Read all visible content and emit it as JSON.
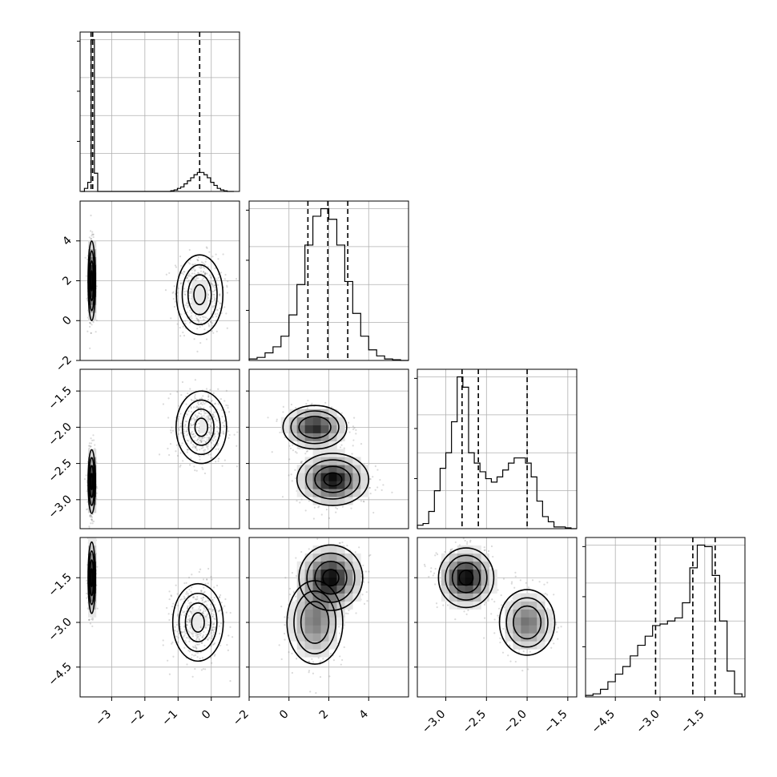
{
  "chart_data": [
    {
      "type": "histogram",
      "parameter_index": 0,
      "bins": [
        -3.92,
        -3.82,
        -3.72,
        -3.62,
        -3.52,
        -3.42,
        -3.32,
        -3.22,
        -3.12,
        -3.02,
        -2.92,
        -2.82,
        -2.72,
        -2.62,
        -2.52,
        -2.42,
        -2.32,
        -2.22,
        -2.12,
        -2.02,
        -1.92,
        -1.82,
        -1.72,
        -1.62,
        -1.52,
        -1.42,
        -1.32,
        -1.22,
        -1.12,
        -1.02,
        -0.92,
        -0.82,
        -0.72,
        -0.62,
        -0.52,
        -0.42,
        -0.32,
        -0.22,
        -0.12,
        -0.02,
        0.08,
        0.18,
        0.28,
        0.38,
        0.48,
        0.58,
        0.68
      ],
      "counts": [
        0,
        0.02,
        0.06,
        1.0,
        0.12,
        0,
        0,
        0,
        0,
        0,
        0,
        0,
        0,
        0,
        0,
        0,
        0,
        0,
        0,
        0,
        0,
        0,
        0,
        0,
        0,
        0,
        0,
        0.005,
        0.01,
        0.02,
        0.03,
        0.05,
        0.07,
        0.09,
        0.11,
        0.125,
        0.125,
        0.11,
        0.09,
        0.06,
        0.04,
        0.02,
        0.01,
        0.004,
        0,
        0
      ],
      "quantiles": [
        -3.62,
        -3.57,
        -0.35
      ],
      "xlim": [
        -3.95,
        0.85
      ]
    },
    {
      "type": "histogram",
      "parameter_index": 1,
      "bins": [
        -2.0,
        -1.6,
        -1.2,
        -0.8,
        -0.4,
        0.0,
        0.4,
        0.8,
        1.2,
        1.6,
        2.0,
        2.4,
        2.8,
        3.2,
        3.6,
        4.0,
        4.4,
        4.8,
        5.2,
        5.6,
        6.0
      ],
      "counts": [
        0.01,
        0.02,
        0.05,
        0.09,
        0.16,
        0.3,
        0.5,
        0.76,
        0.95,
        1.0,
        0.93,
        0.76,
        0.52,
        0.31,
        0.16,
        0.07,
        0.03,
        0.01,
        0.005,
        0
      ],
      "quantiles": [
        0.95,
        1.95,
        2.95
      ],
      "xlim": [
        -2.0,
        6.0
      ]
    },
    {
      "type": "histogram",
      "parameter_index": 2,
      "bins": [
        -3.35,
        -3.28,
        -3.21,
        -3.14,
        -3.07,
        -3.0,
        -2.93,
        -2.86,
        -2.79,
        -2.72,
        -2.65,
        -2.58,
        -2.51,
        -2.44,
        -2.37,
        -2.3,
        -2.23,
        -2.16,
        -2.09,
        -2.02,
        -1.95,
        -1.88,
        -1.81,
        -1.74,
        -1.67,
        -1.6,
        -1.53,
        -1.46,
        -1.39
      ],
      "counts": [
        0.02,
        0.03,
        0.1,
        0.22,
        0.35,
        0.44,
        0.62,
        0.88,
        0.82,
        0.44,
        0.38,
        0.33,
        0.29,
        0.27,
        0.3,
        0.34,
        0.38,
        0.41,
        0.41,
        0.38,
        0.3,
        0.16,
        0.07,
        0.04,
        0.01,
        0.01,
        0.005,
        0
      ],
      "quantiles": [
        -2.8,
        -2.6,
        -2.0
      ],
      "xlim": [
        -3.35,
        -1.39
      ]
    },
    {
      "type": "histogram",
      "parameter_index": 3,
      "bins": [
        -5.5,
        -5.25,
        -5.0,
        -4.75,
        -4.5,
        -4.25,
        -4.0,
        -3.75,
        -3.5,
        -3.25,
        -3.0,
        -2.75,
        -2.5,
        -2.25,
        -2.0,
        -1.75,
        -1.5,
        -1.25,
        -1.0,
        -0.75,
        -0.5,
        -0.25
      ],
      "counts": [
        0.01,
        0.02,
        0.05,
        0.1,
        0.15,
        0.2,
        0.27,
        0.34,
        0.4,
        0.47,
        0.48,
        0.5,
        0.52,
        0.62,
        0.85,
        1.0,
        0.99,
        0.8,
        0.5,
        0.17,
        0.02
      ],
      "quantiles": [
        -3.15,
        -1.9,
        -1.15
      ],
      "xlim": [
        -5.5,
        -0.15
      ]
    },
    {
      "type": "scatter_density",
      "x_parameter": 0,
      "y_parameter": 1,
      "modes": [
        {
          "cx": -3.6,
          "cy": 2.0,
          "sx": 0.055,
          "sy": 1.0,
          "weight": 0.5
        },
        {
          "cx": -0.35,
          "cy": 1.3,
          "sx": 0.35,
          "sy": 1.0,
          "weight": 0.5
        }
      ],
      "xlim": [
        -3.95,
        0.85
      ],
      "ylim": [
        -2.0,
        6.0
      ]
    },
    {
      "type": "scatter_density",
      "x_parameter": 0,
      "y_parameter": 2,
      "modes": [
        {
          "cx": -3.6,
          "cy": -2.75,
          "sx": 0.055,
          "sy": 0.22,
          "weight": 0.5
        },
        {
          "cx": -0.3,
          "cy": -2.0,
          "sx": 0.38,
          "sy": 0.25,
          "weight": 0.5
        }
      ],
      "xlim": [
        -3.95,
        0.85
      ],
      "ylim": [
        -3.4,
        -1.2
      ]
    },
    {
      "type": "scatter_density",
      "x_parameter": 0,
      "y_parameter": 3,
      "modes": [
        {
          "cx": -3.6,
          "cy": -1.5,
          "sx": 0.055,
          "sy": 0.6,
          "weight": 0.5
        },
        {
          "cx": -0.4,
          "cy": -3.0,
          "sx": 0.38,
          "sy": 0.65,
          "weight": 0.5
        }
      ],
      "xlim": [
        -3.95,
        0.85
      ],
      "ylim": [
        -5.5,
        -0.15
      ]
    },
    {
      "type": "scatter_density",
      "x_parameter": 1,
      "y_parameter": 2,
      "modes": [
        {
          "cx": 2.2,
          "cy": -2.72,
          "sx": 0.9,
          "sy": 0.18,
          "weight": 0.6
        },
        {
          "cx": 1.3,
          "cy": -2.0,
          "sx": 0.8,
          "sy": 0.15,
          "weight": 0.4
        }
      ],
      "xlim": [
        -2.0,
        6.0
      ],
      "ylim": [
        -3.4,
        -1.2
      ]
    },
    {
      "type": "scatter_density",
      "x_parameter": 1,
      "y_parameter": 3,
      "modes": [
        {
          "cx": 2.1,
          "cy": -1.5,
          "sx": 0.8,
          "sy": 0.55,
          "weight": 0.6
        },
        {
          "cx": 1.3,
          "cy": -3.0,
          "sx": 0.7,
          "sy": 0.7,
          "weight": 0.4
        }
      ],
      "xlim": [
        -2.0,
        6.0
      ],
      "ylim": [
        -5.5,
        -0.15
      ]
    },
    {
      "type": "scatter_density",
      "x_parameter": 2,
      "y_parameter": 3,
      "modes": [
        {
          "cx": -2.75,
          "cy": -1.5,
          "sx": 0.17,
          "sy": 0.5,
          "weight": 0.6
        },
        {
          "cx": -2.0,
          "cy": -3.0,
          "sx": 0.17,
          "sy": 0.55,
          "weight": 0.4
        }
      ],
      "xlim": [
        -3.35,
        -1.39
      ],
      "ylim": [
        -5.5,
        -0.15
      ]
    }
  ],
  "axes": {
    "x_ticks": [
      [
        -3,
        -2,
        -1,
        0
      ],
      [
        -2,
        0,
        2,
        4
      ],
      [
        -3.0,
        -2.5,
        -2.0,
        -1.5
      ],
      [
        -4.5,
        -3.0,
        -1.5
      ]
    ],
    "x_tick_labels": [
      [
        "−3",
        "−2",
        "−1",
        "0"
      ],
      [
        "−2",
        "0",
        "2",
        "4"
      ],
      [
        "−3.0",
        "−2.5",
        "−2.0",
        "−1.5"
      ],
      [
        "−4.5",
        "−3.0",
        "−1.5"
      ]
    ],
    "y_ticks": [
      [],
      [
        -2,
        0,
        2,
        4
      ],
      [
        -3.0,
        -2.5,
        -2.0,
        -1.5
      ],
      [
        -4.5,
        -3.0,
        -1.5
      ]
    ],
    "y_tick_labels": [
      [],
      [
        "−2",
        "0",
        "2",
        "4"
      ],
      [
        "−3.0",
        "−2.5",
        "−2.0",
        "−1.5"
      ],
      [
        "−4.5",
        "−3.0",
        "−1.5"
      ]
    ]
  },
  "style": {
    "line_color": "#000000",
    "grid_color": "#b0b0b0",
    "sample_color": "#7a7a7a"
  }
}
